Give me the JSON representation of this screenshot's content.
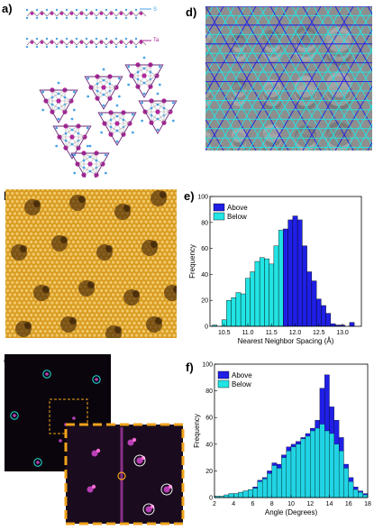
{
  "panels": {
    "a": {
      "label": "a)",
      "species": [
        "S",
        "Ta"
      ]
    },
    "b": {
      "label": "b)"
    },
    "c": {
      "label": "c)"
    },
    "d": {
      "label": "d)"
    },
    "e": {
      "label": "e)"
    },
    "f": {
      "label": "f)"
    }
  },
  "colors": {
    "above": "#1f1fe6",
    "below": "#22e4e4",
    "sulfur": "#4aa3e8",
    "tantalum": "#b0289a",
    "stm_gold": "#d79a1e",
    "fft_purple": "#b83fb5",
    "highlight_orange": "#f2a31b"
  },
  "chart_data": [
    {
      "type": "bar",
      "panel": "e",
      "xlabel": "Nearest Neighbor Spacing (Å)",
      "ylabel": "Frequency",
      "xlim": [
        10.2,
        13.4
      ],
      "ylim": [
        0,
        100
      ],
      "xticks": [
        "10.5",
        "11.0",
        "11.5",
        "12.0",
        "12.5",
        "13.0"
      ],
      "yticks": [
        "0",
        "20",
        "40",
        "60",
        "80",
        "100"
      ],
      "bin_width": 0.1,
      "legend": [
        "Above",
        "Below"
      ],
      "series": [
        {
          "name": "Below",
          "x": [
            10.3,
            10.5,
            10.6,
            10.7,
            10.8,
            10.9,
            11.0,
            11.1,
            11.2,
            11.3,
            11.4,
            11.5,
            11.6,
            11.7,
            11.8
          ],
          "values": [
            1,
            5,
            20,
            22,
            26,
            25,
            37,
            42,
            50,
            53,
            52,
            48,
            62,
            74,
            0
          ]
        },
        {
          "name": "Above",
          "x": [
            11.8,
            11.9,
            12.0,
            12.1,
            12.2,
            12.3,
            12.4,
            12.5,
            12.6,
            12.7,
            12.8,
            12.9,
            13.0,
            13.2
          ],
          "values": [
            75,
            82,
            85,
            82,
            62,
            42,
            35,
            21,
            16,
            10,
            2,
            1,
            1,
            3
          ]
        }
      ]
    },
    {
      "type": "bar",
      "panel": "f",
      "xlabel": "Angle (Degrees)",
      "ylabel": "Frequency",
      "xlim": [
        2,
        18
      ],
      "ylim": [
        0,
        100
      ],
      "xticks": [
        "2",
        "4",
        "6",
        "8",
        "10",
        "12",
        "14",
        "16",
        "18"
      ],
      "yticks": [
        "0",
        "20",
        "40",
        "60",
        "80",
        "100"
      ],
      "bin_width": 0.5,
      "legend": [
        "Above",
        "Below"
      ],
      "bins": [
        2.0,
        2.5,
        3.0,
        3.5,
        4.0,
        4.5,
        5.0,
        5.5,
        6.0,
        6.5,
        7.0,
        7.5,
        8.0,
        8.5,
        9.0,
        9.5,
        10.0,
        10.5,
        11.0,
        11.5,
        12.0,
        12.5,
        13.0,
        13.5,
        14.0,
        14.5,
        15.0,
        15.5,
        16.0,
        16.5,
        17.0,
        17.5
      ],
      "series": [
        {
          "name": "Above",
          "values": [
            1,
            1,
            2,
            3,
            3,
            4,
            5,
            6,
            8,
            13,
            15,
            20,
            26,
            25,
            32,
            38,
            40,
            42,
            45,
            48,
            52,
            58,
            82,
            92,
            68,
            58,
            45,
            25,
            15,
            8,
            5,
            3
          ]
        },
        {
          "name": "Below",
          "values": [
            1,
            1,
            2,
            3,
            3,
            4,
            5,
            6,
            7,
            12,
            14,
            18,
            24,
            22,
            30,
            35,
            38,
            40,
            44,
            46,
            50,
            52,
            55,
            50,
            48,
            40,
            35,
            22,
            12,
            6,
            4,
            2
          ]
        }
      ]
    }
  ]
}
